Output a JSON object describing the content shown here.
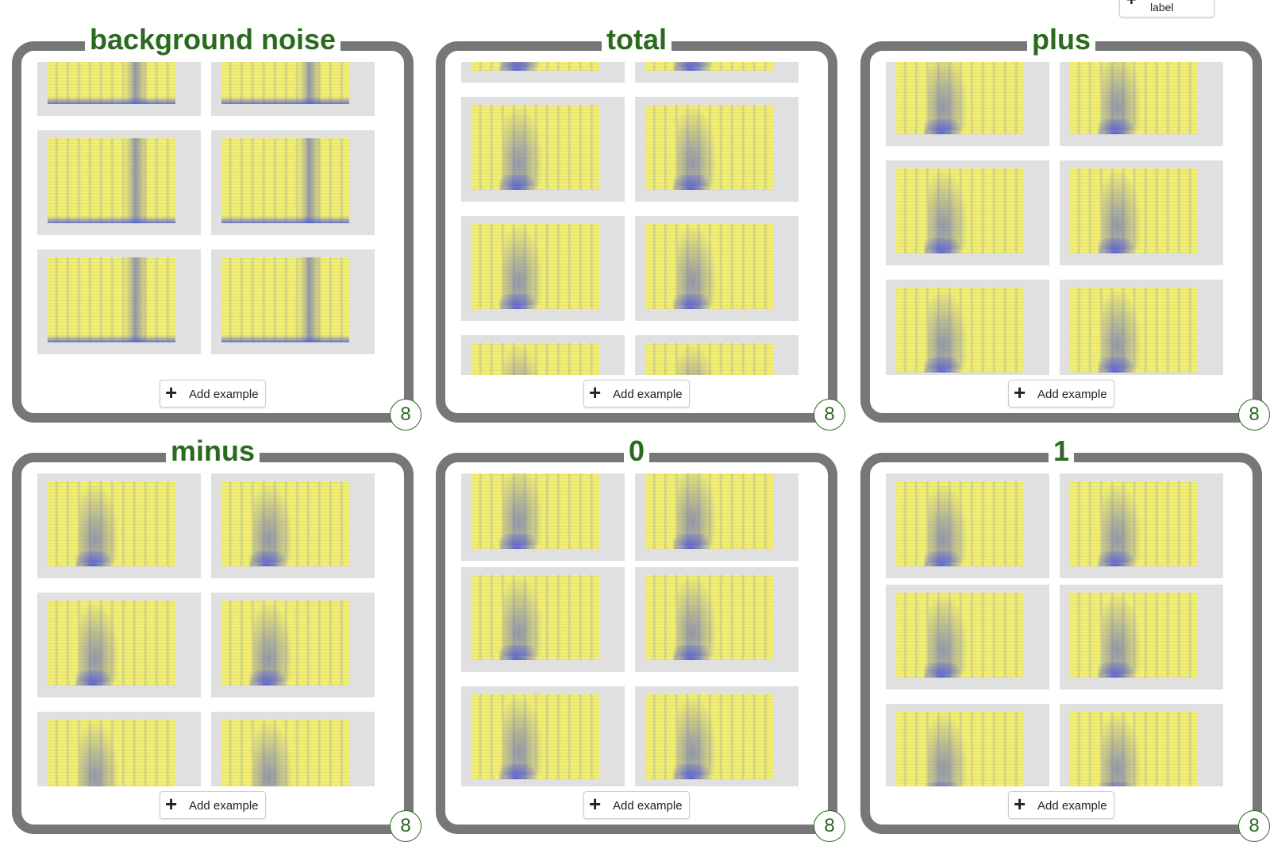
{
  "header": {
    "add_label_text": "label"
  },
  "panels": [
    {
      "title": "background noise",
      "add_label": "Add example",
      "count": "8"
    },
    {
      "title": "total",
      "add_label": "Add example",
      "count": "8"
    },
    {
      "title": "plus",
      "add_label": "Add example",
      "count": "8"
    },
    {
      "title": "minus",
      "add_label": "Add example",
      "count": "8"
    },
    {
      "title": "0",
      "add_label": "Add example",
      "count": "8"
    },
    {
      "title": "1",
      "add_label": "Add example",
      "count": "8"
    }
  ],
  "colors": {
    "title": "#2a6a1f",
    "frame": "#777777",
    "spectrogram_bg": "#f3f06e",
    "spectrogram_ink": "#4650d2"
  },
  "icons": {
    "add": "plus-icon"
  }
}
